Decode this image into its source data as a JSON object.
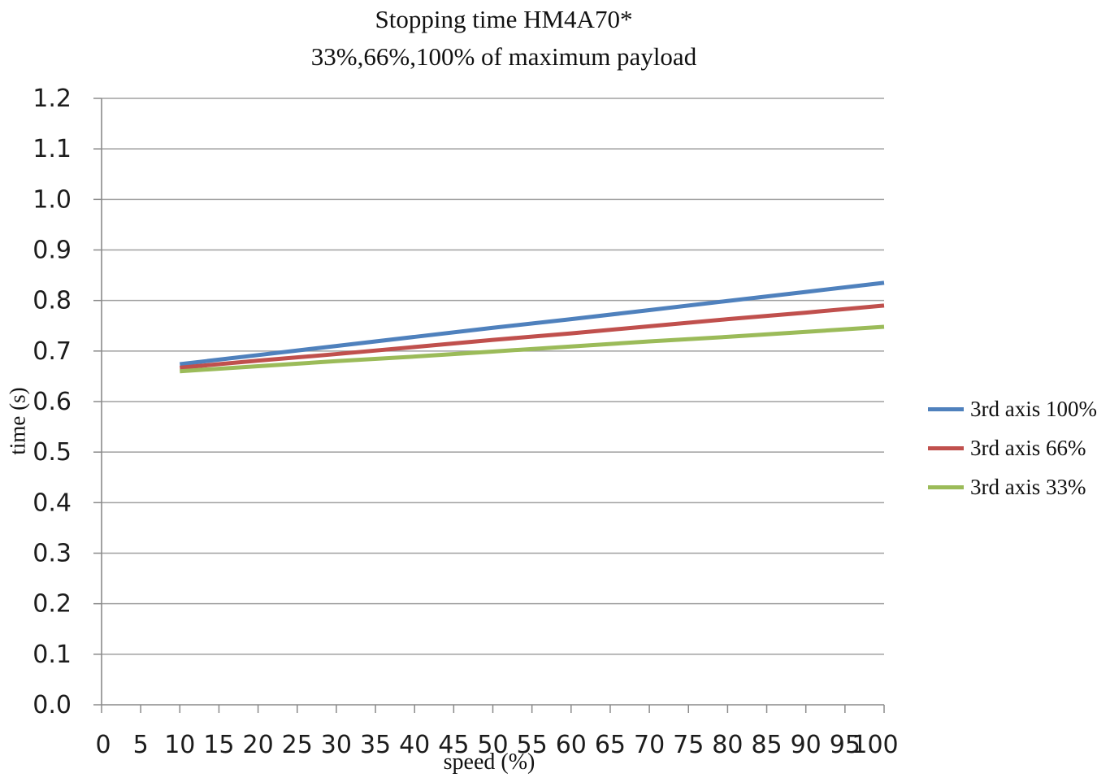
{
  "colors": {
    "gridline": "#a0a0a0",
    "axis": "#8a8a8a",
    "series_blue": "#4F81BD",
    "series_red": "#C0504D",
    "series_green": "#9BBB59"
  },
  "chart_data": {
    "type": "line",
    "title": "Stopping time HM4A70*",
    "subtitle": "33%,66%,100% of maximum payload",
    "xlabel": "speed (%)",
    "ylabel": "time (s)",
    "grid": "horizontal",
    "legend_position": "right",
    "x_axis": {
      "min": 0,
      "max": 100,
      "tick_step": 5,
      "tick_labels": [
        "0",
        "5",
        "10",
        "15",
        "20",
        "25",
        "30",
        "35",
        "40",
        "45",
        "50",
        "55",
        "60",
        "65",
        "70",
        "75",
        "80",
        "85",
        "90",
        "95",
        "100"
      ]
    },
    "y_axis": {
      "min": 0.0,
      "max": 1.2,
      "tick_step": 0.1,
      "tick_labels": [
        "0.0",
        "0.1",
        "0.2",
        "0.3",
        "0.4",
        "0.5",
        "0.6",
        "0.7",
        "0.8",
        "0.9",
        "1.0",
        "1.1",
        "1.2"
      ]
    },
    "x": [
      10,
      20,
      30,
      40,
      50,
      60,
      70,
      80,
      90,
      100
    ],
    "series": [
      {
        "name": "3rd axis 100%",
        "color": "#4F81BD",
        "values": [
          0.674,
          0.692,
          0.71,
          0.728,
          0.746,
          0.763,
          0.781,
          0.799,
          0.817,
          0.835
        ]
      },
      {
        "name": "3rd axis 66%",
        "color": "#C0504D",
        "values": [
          0.667,
          0.681,
          0.694,
          0.708,
          0.722,
          0.735,
          0.749,
          0.763,
          0.776,
          0.79
        ]
      },
      {
        "name": "3rd axis 33%",
        "color": "#9BBB59",
        "values": [
          0.66,
          0.67,
          0.68,
          0.689,
          0.699,
          0.709,
          0.719,
          0.728,
          0.738,
          0.748
        ]
      }
    ]
  }
}
